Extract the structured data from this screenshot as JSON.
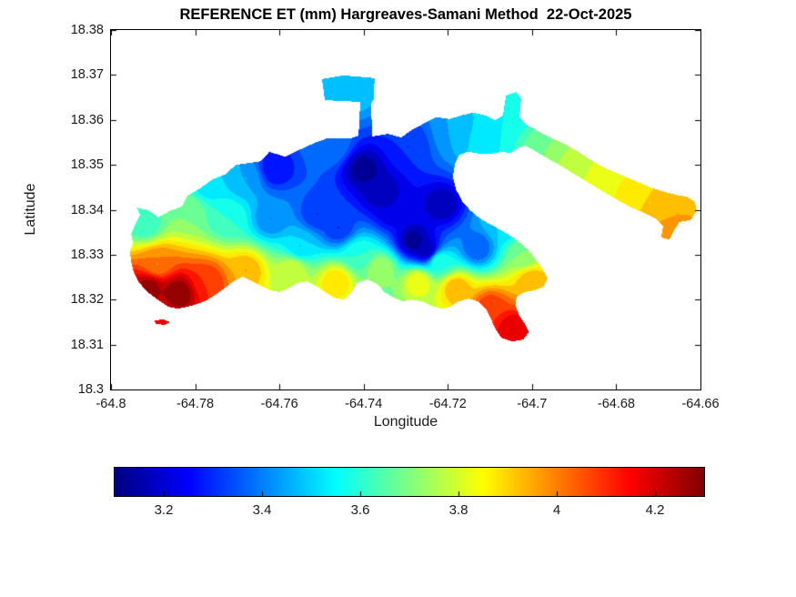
{
  "axes": {
    "x_ticks": [
      "-64.8",
      "-64.78",
      "-64.76",
      "-64.74",
      "-64.72",
      "-64.7",
      "-64.68",
      "-64.66"
    ],
    "x_tick_values": [
      -64.8,
      -64.78,
      -64.76,
      -64.74,
      -64.72,
      -64.7,
      -64.68,
      -64.66
    ],
    "y_ticks": [
      "18.38",
      "18.37",
      "18.36",
      "18.35",
      "18.34",
      "18.33",
      "18.32",
      "18.31",
      "18.3"
    ],
    "y_tick_values": [
      18.38,
      18.37,
      18.36,
      18.35,
      18.34,
      18.33,
      18.32,
      18.31,
      18.3
    ]
  },
  "colorbar": {
    "min": 3.1,
    "max": 4.3,
    "ticks": [
      "3.2",
      "3.4",
      "3.6",
      "3.8",
      "4",
      "4.2"
    ],
    "tick_values": [
      3.2,
      3.4,
      3.6,
      3.8,
      4,
      4.2
    ],
    "colormap": "jet"
  },
  "chart_data": {
    "type": "heatmap",
    "subtype": "filled-contour-geographic-map",
    "title": "REFERENCE ET (mm) Hargreaves-Samani Method  22-Oct-2025",
    "xlabel": "Longitude",
    "ylabel": "Latitude",
    "xlim": [
      -64.8,
      -64.66
    ],
    "ylim": [
      18.3,
      18.38
    ],
    "value_label": "Reference ET (mm)",
    "value_range": [
      3.1,
      4.3
    ],
    "contour_interval": 0.05,
    "colormap": "jet",
    "region_outline": [
      [
        [
          -64.7944,
          18.3364
        ],
        [
          -64.7931,
          18.3389
        ],
        [
          -64.794,
          18.3405
        ],
        [
          -64.7911,
          18.3399
        ],
        [
          -64.7888,
          18.3383
        ],
        [
          -64.7857,
          18.3399
        ],
        [
          -64.7832,
          18.3407
        ],
        [
          -64.7819,
          18.3431
        ],
        [
          -64.7788,
          18.3448
        ],
        [
          -64.7758,
          18.3468
        ],
        [
          -64.7726,
          18.348
        ],
        [
          -64.7704,
          18.35
        ],
        [
          -64.7672,
          18.3504
        ],
        [
          -64.7644,
          18.3508
        ],
        [
          -64.7624,
          18.3529
        ],
        [
          -64.7587,
          18.3518
        ],
        [
          -64.7549,
          18.3535
        ],
        [
          -64.7516,
          18.3549
        ],
        [
          -64.7486,
          18.3559
        ],
        [
          -64.743,
          18.3559
        ],
        [
          -64.7412,
          18.3565
        ],
        [
          -64.7408,
          18.364
        ],
        [
          -64.7492,
          18.3644
        ],
        [
          -64.7499,
          18.3691
        ],
        [
          -64.7447,
          18.3699
        ],
        [
          -64.7374,
          18.3693
        ],
        [
          -64.7376,
          18.3644
        ],
        [
          -64.7382,
          18.3638
        ],
        [
          -64.738,
          18.3563
        ],
        [
          -64.7343,
          18.3569
        ],
        [
          -64.7311,
          18.3561
        ],
        [
          -64.7283,
          18.3579
        ],
        [
          -64.7255,
          18.3593
        ],
        [
          -64.7227,
          18.3606
        ],
        [
          -64.7196,
          18.3602
        ],
        [
          -64.7168,
          18.361
        ],
        [
          -64.714,
          18.3616
        ],
        [
          -64.711,
          18.361
        ],
        [
          -64.7088,
          18.3599
        ],
        [
          -64.7069,
          18.361
        ],
        [
          -64.7062,
          18.3654
        ],
        [
          -64.7039,
          18.3662
        ],
        [
          -64.7026,
          18.3648
        ],
        [
          -64.703,
          18.3606
        ],
        [
          -64.7013,
          18.3589
        ],
        [
          -64.6982,
          18.3573
        ],
        [
          -64.6952,
          18.3559
        ],
        [
          -64.6924,
          18.3547
        ],
        [
          -64.6894,
          18.3531
        ],
        [
          -64.6866,
          18.3514
        ],
        [
          -64.6838,
          18.3498
        ],
        [
          -64.681,
          18.3486
        ],
        [
          -64.6779,
          18.3474
        ],
        [
          -64.6749,
          18.3462
        ],
        [
          -64.6719,
          18.345
        ],
        [
          -64.6689,
          18.3441
        ],
        [
          -64.6658,
          18.3433
        ],
        [
          -64.6632,
          18.3429
        ],
        [
          -64.6613,
          18.3417
        ],
        [
          -64.6609,
          18.3397
        ],
        [
          -64.6624,
          18.3377
        ],
        [
          -64.665,
          18.3373
        ],
        [
          -64.6663,
          18.3354
        ],
        [
          -64.6673,
          18.3334
        ],
        [
          -64.6693,
          18.3338
        ],
        [
          -64.6689,
          18.3363
        ],
        [
          -64.6708,
          18.3381
        ],
        [
          -64.6734,
          18.3393
        ],
        [
          -64.6764,
          18.3405
        ],
        [
          -64.6795,
          18.3421
        ],
        [
          -64.6825,
          18.3437
        ],
        [
          -64.6855,
          18.3454
        ],
        [
          -64.6883,
          18.347
        ],
        [
          -64.6911,
          18.3486
        ],
        [
          -64.6939,
          18.3502
        ],
        [
          -64.6967,
          18.3516
        ],
        [
          -64.6993,
          18.3531
        ],
        [
          -64.7017,
          18.3543
        ],
        [
          -64.7034,
          18.3537
        ],
        [
          -64.7052,
          18.3526
        ],
        [
          -64.7071,
          18.3529
        ],
        [
          -64.7097,
          18.3525
        ],
        [
          -64.7125,
          18.3525
        ],
        [
          -64.7153,
          18.3529
        ],
        [
          -64.7173,
          18.3522
        ],
        [
          -64.7183,
          18.3502
        ],
        [
          -64.7188,
          18.3474
        ],
        [
          -64.7181,
          18.3446
        ],
        [
          -64.7166,
          18.3419
        ],
        [
          -64.7147,
          18.3399
        ],
        [
          -64.7127,
          18.3383
        ],
        [
          -64.7106,
          18.3371
        ],
        [
          -64.708,
          18.3358
        ],
        [
          -64.7054,
          18.3344
        ],
        [
          -64.703,
          18.3328
        ],
        [
          -64.7008,
          18.331
        ],
        [
          -64.6991,
          18.329
        ],
        [
          -64.6974,
          18.3267
        ],
        [
          -64.6963,
          18.3247
        ],
        [
          -64.6972,
          18.3229
        ],
        [
          -64.6993,
          18.3221
        ],
        [
          -64.7017,
          18.3217
        ],
        [
          -64.7037,
          18.3206
        ],
        [
          -64.7039,
          18.3186
        ],
        [
          -64.703,
          18.3164
        ],
        [
          -64.7017,
          18.3146
        ],
        [
          -64.7008,
          18.3128
        ],
        [
          -64.7021,
          18.3111
        ],
        [
          -64.7047,
          18.3107
        ],
        [
          -64.7073,
          18.3115
        ],
        [
          -64.7088,
          18.3136
        ],
        [
          -64.7099,
          18.316
        ],
        [
          -64.711,
          18.318
        ],
        [
          -64.7127,
          18.3196
        ],
        [
          -64.7151,
          18.3202
        ],
        [
          -64.7175,
          18.3196
        ],
        [
          -64.7194,
          18.3184
        ],
        [
          -64.7214,
          18.318
        ],
        [
          -64.7238,
          18.3186
        ],
        [
          -64.7261,
          18.3196
        ],
        [
          -64.7285,
          18.32
        ],
        [
          -64.7307,
          18.3196
        ],
        [
          -64.7328,
          18.3204
        ],
        [
          -64.7348,
          18.3215
        ],
        [
          -64.7369,
          18.3235
        ],
        [
          -64.7391,
          18.3245
        ],
        [
          -64.7415,
          18.3237
        ],
        [
          -64.743,
          18.3215
        ],
        [
          -64.7447,
          18.32
        ],
        [
          -64.7469,
          18.3204
        ],
        [
          -64.7492,
          18.3217
        ],
        [
          -64.7514,
          18.3231
        ],
        [
          -64.7535,
          18.3241
        ],
        [
          -64.7557,
          18.3237
        ],
        [
          -64.7579,
          18.3225
        ],
        [
          -64.76,
          18.3217
        ],
        [
          -64.7622,
          18.3221
        ],
        [
          -64.7644,
          18.3231
        ],
        [
          -64.7666,
          18.3241
        ],
        [
          -64.7687,
          18.3251
        ],
        [
          -64.7709,
          18.3241
        ],
        [
          -64.7731,
          18.3225
        ],
        [
          -64.7752,
          18.3211
        ],
        [
          -64.7774,
          18.3198
        ],
        [
          -64.7796,
          18.319
        ],
        [
          -64.7819,
          18.3184
        ],
        [
          -64.7841,
          18.318
        ],
        [
          -64.7863,
          18.3184
        ],
        [
          -64.7883,
          18.3196
        ],
        [
          -64.7905,
          18.3211
        ],
        [
          -64.7922,
          18.3225
        ],
        [
          -64.7935,
          18.3241
        ],
        [
          -64.7946,
          18.3261
        ],
        [
          -64.7952,
          18.3283
        ],
        [
          -64.7955,
          18.3306
        ],
        [
          -64.7948,
          18.3326
        ],
        [
          -64.7952,
          18.3346
        ]
      ],
      [
        [
          -64.7896,
          18.3154
        ],
        [
          -64.7875,
          18.3156
        ],
        [
          -64.786,
          18.315
        ],
        [
          -64.7873,
          18.3144
        ],
        [
          -64.7894,
          18.3146
        ]
      ]
    ],
    "samples": [
      {
        "lon": -64.792,
        "lat": 18.337,
        "et": 3.6
      },
      {
        "lon": -64.782,
        "lat": 18.34,
        "et": 3.7
      },
      {
        "lon": -64.777,
        "lat": 18.346,
        "et": 3.5
      },
      {
        "lon": -64.772,
        "lat": 18.338,
        "et": 3.6
      },
      {
        "lon": -64.768,
        "lat": 18.347,
        "et": 3.45
      },
      {
        "lon": -64.761,
        "lat": 18.349,
        "et": 3.25
      },
      {
        "lon": -64.762,
        "lat": 18.338,
        "et": 3.4
      },
      {
        "lon": -64.751,
        "lat": 18.339,
        "et": 3.3
      },
      {
        "lon": -64.7475,
        "lat": 18.354,
        "et": 3.4
      },
      {
        "lon": -64.743,
        "lat": 18.367,
        "et": 3.5
      },
      {
        "lon": -64.74,
        "lat": 18.349,
        "et": 3.12
      },
      {
        "lon": -64.736,
        "lat": 18.344,
        "et": 3.15
      },
      {
        "lon": -64.746,
        "lat": 18.336,
        "et": 3.3
      },
      {
        "lon": -64.7295,
        "lat": 18.354,
        "et": 3.3
      },
      {
        "lon": -64.718,
        "lat": 18.357,
        "et": 3.45
      },
      {
        "lon": -64.7115,
        "lat": 18.3555,
        "et": 3.55
      },
      {
        "lon": -64.7055,
        "lat": 18.3625,
        "et": 3.55
      },
      {
        "lon": -64.728,
        "lat": 18.333,
        "et": 3.12
      },
      {
        "lon": -64.725,
        "lat": 18.331,
        "et": 3.15
      },
      {
        "lon": -64.7215,
        "lat": 18.341,
        "et": 3.15
      },
      {
        "lon": -64.733,
        "lat": 18.34,
        "et": 3.2
      },
      {
        "lon": -64.713,
        "lat": 18.3315,
        "et": 3.35
      },
      {
        "lon": -64.707,
        "lat": 18.3365,
        "et": 3.5
      },
      {
        "lon": -64.702,
        "lat": 18.33,
        "et": 3.7
      },
      {
        "lon": -64.7,
        "lat": 18.324,
        "et": 3.95
      },
      {
        "lon": -64.7045,
        "lat": 18.3135,
        "et": 4.2
      },
      {
        "lon": -64.71,
        "lat": 18.318,
        "et": 4.1
      },
      {
        "lon": -64.718,
        "lat": 18.3225,
        "et": 3.95
      },
      {
        "lon": -64.727,
        "lat": 18.324,
        "et": 3.85
      },
      {
        "lon": -64.736,
        "lat": 18.327,
        "et": 3.75
      },
      {
        "lon": -64.741,
        "lat": 18.33,
        "et": 3.6
      },
      {
        "lon": -64.722,
        "lat": 18.3285,
        "et": 3.6
      },
      {
        "lon": -64.7465,
        "lat": 18.324,
        "et": 3.9
      },
      {
        "lon": -64.757,
        "lat": 18.3265,
        "et": 3.8
      },
      {
        "lon": -64.755,
        "lat": 18.332,
        "et": 3.5
      },
      {
        "lon": -64.768,
        "lat": 18.3265,
        "et": 3.95
      },
      {
        "lon": -64.777,
        "lat": 18.324,
        "et": 4.1
      },
      {
        "lon": -64.784,
        "lat": 18.3215,
        "et": 4.3
      },
      {
        "lon": -64.791,
        "lat": 18.3225,
        "et": 4.28
      },
      {
        "lon": -64.789,
        "lat": 18.328,
        "et": 4.0
      },
      {
        "lon": -64.697,
        "lat": 18.353,
        "et": 3.7
      },
      {
        "lon": -64.69,
        "lat": 18.349,
        "et": 3.8
      },
      {
        "lon": -64.681,
        "lat": 18.345,
        "et": 3.85
      },
      {
        "lon": -64.672,
        "lat": 18.3415,
        "et": 3.9
      },
      {
        "lon": -64.6655,
        "lat": 18.339,
        "et": 3.95
      },
      {
        "lon": -64.6675,
        "lat": 18.3335,
        "et": 4.0
      },
      {
        "lon": -64.788,
        "lat": 18.3155,
        "et": 4.15
      }
    ]
  }
}
